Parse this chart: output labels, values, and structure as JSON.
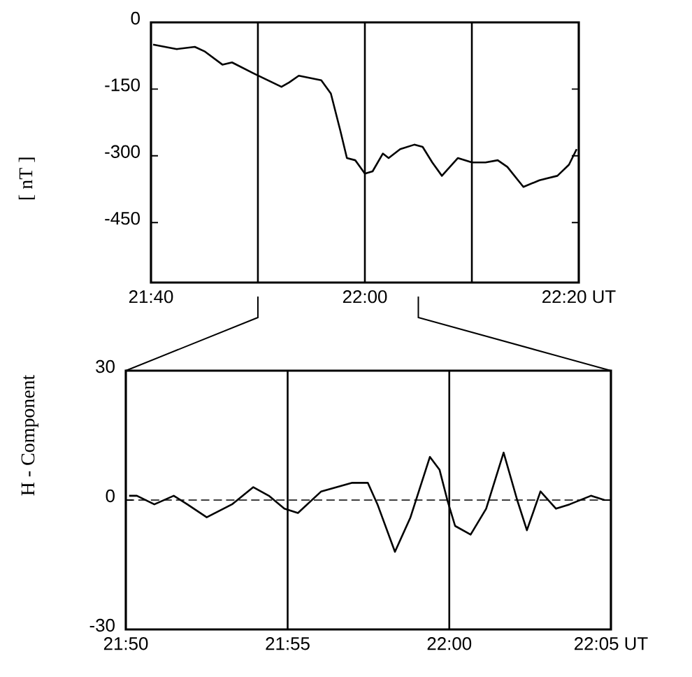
{
  "chart_data": [
    {
      "type": "line",
      "ylabel": "[ nT ]",
      "xlim": [
        21.6667,
        22.3333
      ],
      "ylim": [
        -585,
        0
      ],
      "xticks": [
        {
          "value": 21.6667,
          "label": "21:40"
        },
        {
          "value": 22.0,
          "label": "22:00"
        },
        {
          "value": 22.3333,
          "label": "22:20 UT"
        }
      ],
      "yticks": [
        0,
        -150,
        -300,
        -450
      ],
      "x": [
        21.67,
        21.707,
        21.735,
        21.75,
        21.778,
        21.793,
        21.827,
        21.87,
        21.882,
        21.897,
        21.932,
        21.947,
        21.962,
        21.972,
        21.985,
        22.0,
        22.012,
        22.028,
        22.037,
        22.055,
        22.077,
        22.09,
        22.105,
        22.12,
        22.145,
        22.167,
        22.188,
        22.207,
        22.222,
        22.247,
        22.272,
        22.3,
        22.318,
        22.33
      ],
      "series": [
        {
          "color": "#000000",
          "values": [
            -50,
            -60,
            -55,
            -65,
            -95,
            -90,
            -115,
            -145,
            -135,
            -120,
            -130,
            -160,
            -245,
            -305,
            -310,
            -340,
            -335,
            -295,
            -305,
            -285,
            -275,
            -280,
            -315,
            -345,
            -305,
            -315,
            -315,
            -310,
            -325,
            -370,
            -355,
            -345,
            -320,
            -285
          ]
        }
      ],
      "ref_lines": [
        {
          "axis": "x",
          "value": 21.8333,
          "color": "#000000",
          "line_style": "solid"
        },
        {
          "axis": "x",
          "value": 22.0,
          "color": "#000000",
          "line_style": "solid"
        },
        {
          "axis": "x",
          "value": 22.1667,
          "color": "#000000",
          "line_style": "solid"
        }
      ]
    },
    {
      "type": "line",
      "ylabel": "H - Component",
      "xlim": [
        21.8333,
        22.0833
      ],
      "ylim": [
        -30,
        30
      ],
      "xticks": [
        {
          "value": 21.8333,
          "label": "21:50"
        },
        {
          "value": 21.9167,
          "label": "21:55"
        },
        {
          "value": 22.0,
          "label": "22:00"
        },
        {
          "value": 22.0833,
          "label": "22:05 UT"
        }
      ],
      "yticks": [
        30,
        0,
        -30
      ],
      "x": [
        21.835,
        21.839,
        21.848,
        21.858,
        21.865,
        21.875,
        21.888,
        21.899,
        21.907,
        21.915,
        21.922,
        21.934,
        21.95,
        21.958,
        21.963,
        21.972,
        21.98,
        21.99,
        21.995,
        21.999,
        22.003,
        22.011,
        22.019,
        22.028,
        22.035,
        22.04,
        22.047,
        22.055,
        22.062,
        22.073,
        22.08
      ],
      "series": [
        {
          "color": "#000000",
          "values": [
            1,
            1,
            -1,
            1,
            -1,
            -4,
            -1,
            3,
            1,
            -2,
            -3,
            2,
            4,
            4,
            -1,
            -12,
            -4,
            10,
            7,
            0,
            -6,
            -8,
            -2,
            11,
            0,
            -7,
            2,
            -2,
            -1,
            1,
            0
          ]
        }
      ],
      "ref_lines": [
        {
          "axis": "y",
          "value": 0,
          "color": "#000000",
          "line_style": "dashed"
        },
        {
          "axis": "x",
          "value": 21.9167,
          "color": "#000000",
          "line_style": "solid"
        },
        {
          "axis": "x",
          "value": 22.0,
          "color": "#000000",
          "line_style": "solid"
        }
      ]
    }
  ]
}
